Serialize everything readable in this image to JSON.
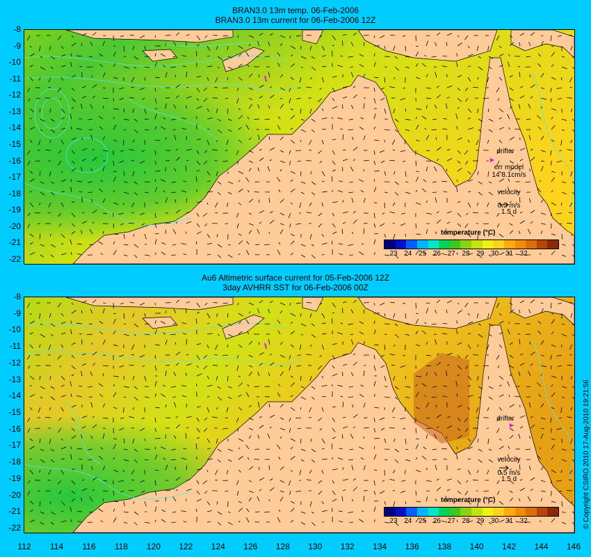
{
  "top_panel": {
    "title_line1": "BRAN3.0 13m temp. 06-Feb-2006",
    "title_line2": "BRAN3.0 13m current for 06-Feb-2006 12Z",
    "drifter_label": "drifter",
    "err_model_line1": "err model",
    "err_model_line2": "14 8.1cm/s",
    "velocity_label": "velocity",
    "velocity_value": "0.5 m/s",
    "velocity_days": "1.5 d",
    "colorbar_title": "temperature (°C)"
  },
  "bottom_panel": {
    "title_line1": "Au6 Altimetric surface current for 05-Feb-2006 12Z",
    "title_line2": "3day AVHRR SST for 06-Feb-2006 00Z",
    "drifter_label": "drifter",
    "velocity_label": "velocity",
    "velocity_value": "0.5 m/s",
    "velocity_days": "1.5 d",
    "colorbar_title": "temperature (°C)"
  },
  "y_axis_labels": [
    "-8",
    "-9",
    "-10",
    "-11",
    "-12",
    "-13",
    "-14",
    "-15",
    "-16",
    "-17",
    "-18",
    "-19",
    "-20",
    "-21",
    "-22"
  ],
  "x_axis_labels": [
    "112",
    "114",
    "116",
    "118",
    "120",
    "122",
    "124",
    "126",
    "128",
    "130",
    "132",
    "134",
    "136",
    "138",
    "140",
    "142",
    "144",
    "146"
  ],
  "colorbar_ticks": [
    "23",
    "24",
    "25",
    "26",
    "27",
    "28",
    "29",
    "30",
    "31",
    "32"
  ],
  "colorbar_colors": [
    "#00007a",
    "#0010c8",
    "#0060ff",
    "#00b4ff",
    "#00e6c8",
    "#00d25a",
    "#3cc81e",
    "#8cd214",
    "#c8e114",
    "#f0f014",
    "#ffd21e",
    "#ffaa14",
    "#f08c0a",
    "#dc6e0a",
    "#b4460a",
    "#8c2805"
  ],
  "copyright": "© Copyright CSIRO 2010   17-Aug-2010 19:21:56",
  "colors": {
    "background": "#00ccff",
    "land": "#ffcc99",
    "drifter": "#ff00ff",
    "contour": "#55e6e6"
  }
}
